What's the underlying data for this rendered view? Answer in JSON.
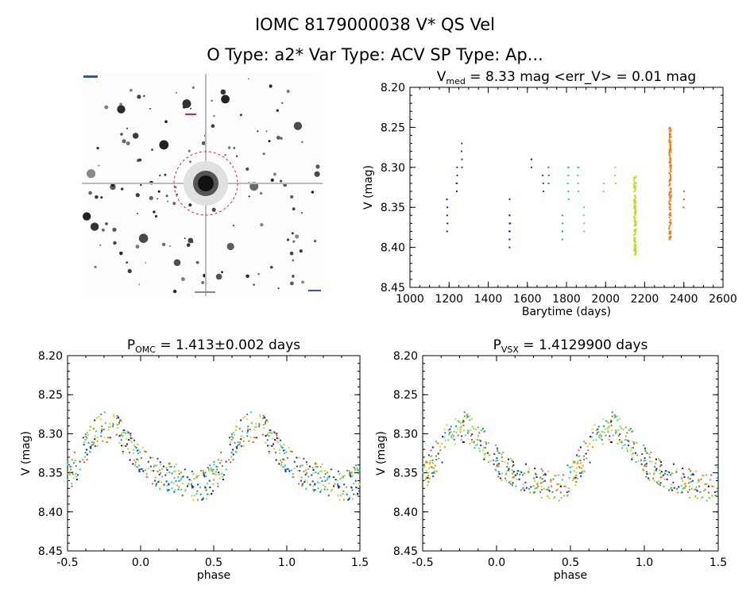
{
  "header": {
    "title": "IOMC 8179000038    V* QS Vel",
    "subtitle": "O Type: a2*  Var Type: ACV  SP Type: Ap..."
  },
  "image_panel": {
    "name": "finding-chart",
    "colors": {
      "background": "#ffffff",
      "stars": "#222222",
      "circle": "#e8202a",
      "markers": "#3050d0"
    }
  },
  "chart_data": [
    {
      "type": "scatter",
      "id": "lightcurve",
      "title": {
        "prefix": "V",
        "sub": "med",
        "rest": " = 8.33 mag <err_V> = 0.01 mag"
      },
      "xlabel": "Barytime (days)",
      "ylabel": "V (mag)",
      "xlim": [
        1000,
        2600
      ],
      "ylim": [
        8.45,
        8.2
      ],
      "y_inverted": true,
      "xticks": [
        1000,
        1200,
        1400,
        1600,
        1800,
        2000,
        2200,
        2400,
        2600
      ],
      "yticks": [
        8.2,
        8.25,
        8.3,
        8.35,
        8.4,
        8.45
      ],
      "clusters": [
        {
          "x": 1190,
          "spread": 4,
          "y": [
            8.34,
            8.36,
            8.37,
            8.35,
            8.38
          ],
          "color": "#3a0a8a"
        },
        {
          "x": 1240,
          "spread": 4,
          "y": [
            8.31,
            8.32,
            8.33,
            8.32,
            8.3
          ],
          "color": "#4a1a9a"
        },
        {
          "x": 1265,
          "spread": 4,
          "y": [
            8.28,
            8.29,
            8.27,
            8.3,
            8.29
          ],
          "color": "#5a2aa8"
        },
        {
          "x": 1510,
          "spread": 6,
          "y": [
            8.37,
            8.38,
            8.39,
            8.4,
            8.36,
            8.38,
            8.39,
            8.37,
            8.34,
            8.36
          ],
          "color": "#1a2aa0"
        },
        {
          "x": 1620,
          "spread": 4,
          "y": [
            8.29,
            8.3,
            8.29
          ],
          "color": "#1040b0"
        },
        {
          "x": 1680,
          "spread": 4,
          "y": [
            8.32,
            8.33,
            8.31
          ],
          "color": "#1060c0"
        },
        {
          "x": 1710,
          "spread": 4,
          "y": [
            8.31,
            8.32,
            8.3
          ],
          "color": "#1080c8"
        },
        {
          "x": 1780,
          "spread": 4,
          "y": [
            8.36,
            8.38,
            8.39,
            8.37
          ],
          "color": "#10a0d0"
        },
        {
          "x": 1810,
          "spread": 6,
          "y": [
            8.3,
            8.32,
            8.33,
            8.34,
            8.3,
            8.31
          ],
          "color": "#20c8c8"
        },
        {
          "x": 1860,
          "spread": 6,
          "y": [
            8.3,
            8.31,
            8.32,
            8.33,
            8.3
          ],
          "color": "#40d890"
        },
        {
          "x": 1890,
          "spread": 4,
          "y": [
            8.35,
            8.37,
            8.38,
            8.36
          ],
          "color": "#50e060"
        },
        {
          "x": 1990,
          "spread": 4,
          "y": [
            8.32,
            8.33,
            8.32
          ],
          "color": "#60e840"
        },
        {
          "x": 2050,
          "spread": 4,
          "y": [
            8.3,
            8.31,
            8.32
          ],
          "color": "#80e830"
        },
        {
          "x": 2150,
          "spread": 12,
          "n": 120,
          "ymin": 8.31,
          "ymax": 8.41,
          "color": "#b8e020"
        },
        {
          "x": 2330,
          "spread": 10,
          "n": 140,
          "ymin": 8.25,
          "ymax": 8.39,
          "color": "#e88018"
        },
        {
          "x": 2400,
          "spread": 4,
          "y": [
            8.34,
            8.35,
            8.33
          ],
          "color": "#d86010"
        }
      ]
    },
    {
      "type": "scatter",
      "id": "phase-omc",
      "title": {
        "prefix": "P",
        "sub": "OMC",
        "rest": " = 1.413±0.002 days"
      },
      "xlabel": "phase",
      "ylabel": "V (mag)",
      "xlim": [
        -0.5,
        1.5
      ],
      "ylim": [
        8.45,
        8.2
      ],
      "y_inverted": true,
      "xticks": [
        -0.5,
        0.0,
        0.5,
        1.0,
        1.5
      ],
      "yticks": [
        8.2,
        8.25,
        8.3,
        8.35,
        8.4,
        8.45
      ],
      "seed": 7
    },
    {
      "type": "scatter",
      "id": "phase-vsx",
      "title": {
        "prefix": "P",
        "sub": "VSX",
        "rest": " = 1.4129900 days"
      },
      "xlabel": "phase",
      "ylabel": "V (mag)",
      "xlim": [
        -0.5,
        1.5
      ],
      "ylim": [
        8.45,
        8.2
      ],
      "y_inverted": true,
      "xticks": [
        -0.5,
        0.0,
        0.5,
        1.0,
        1.5
      ],
      "yticks": [
        8.2,
        8.25,
        8.3,
        8.35,
        8.4,
        8.45
      ],
      "seed": 11
    }
  ]
}
